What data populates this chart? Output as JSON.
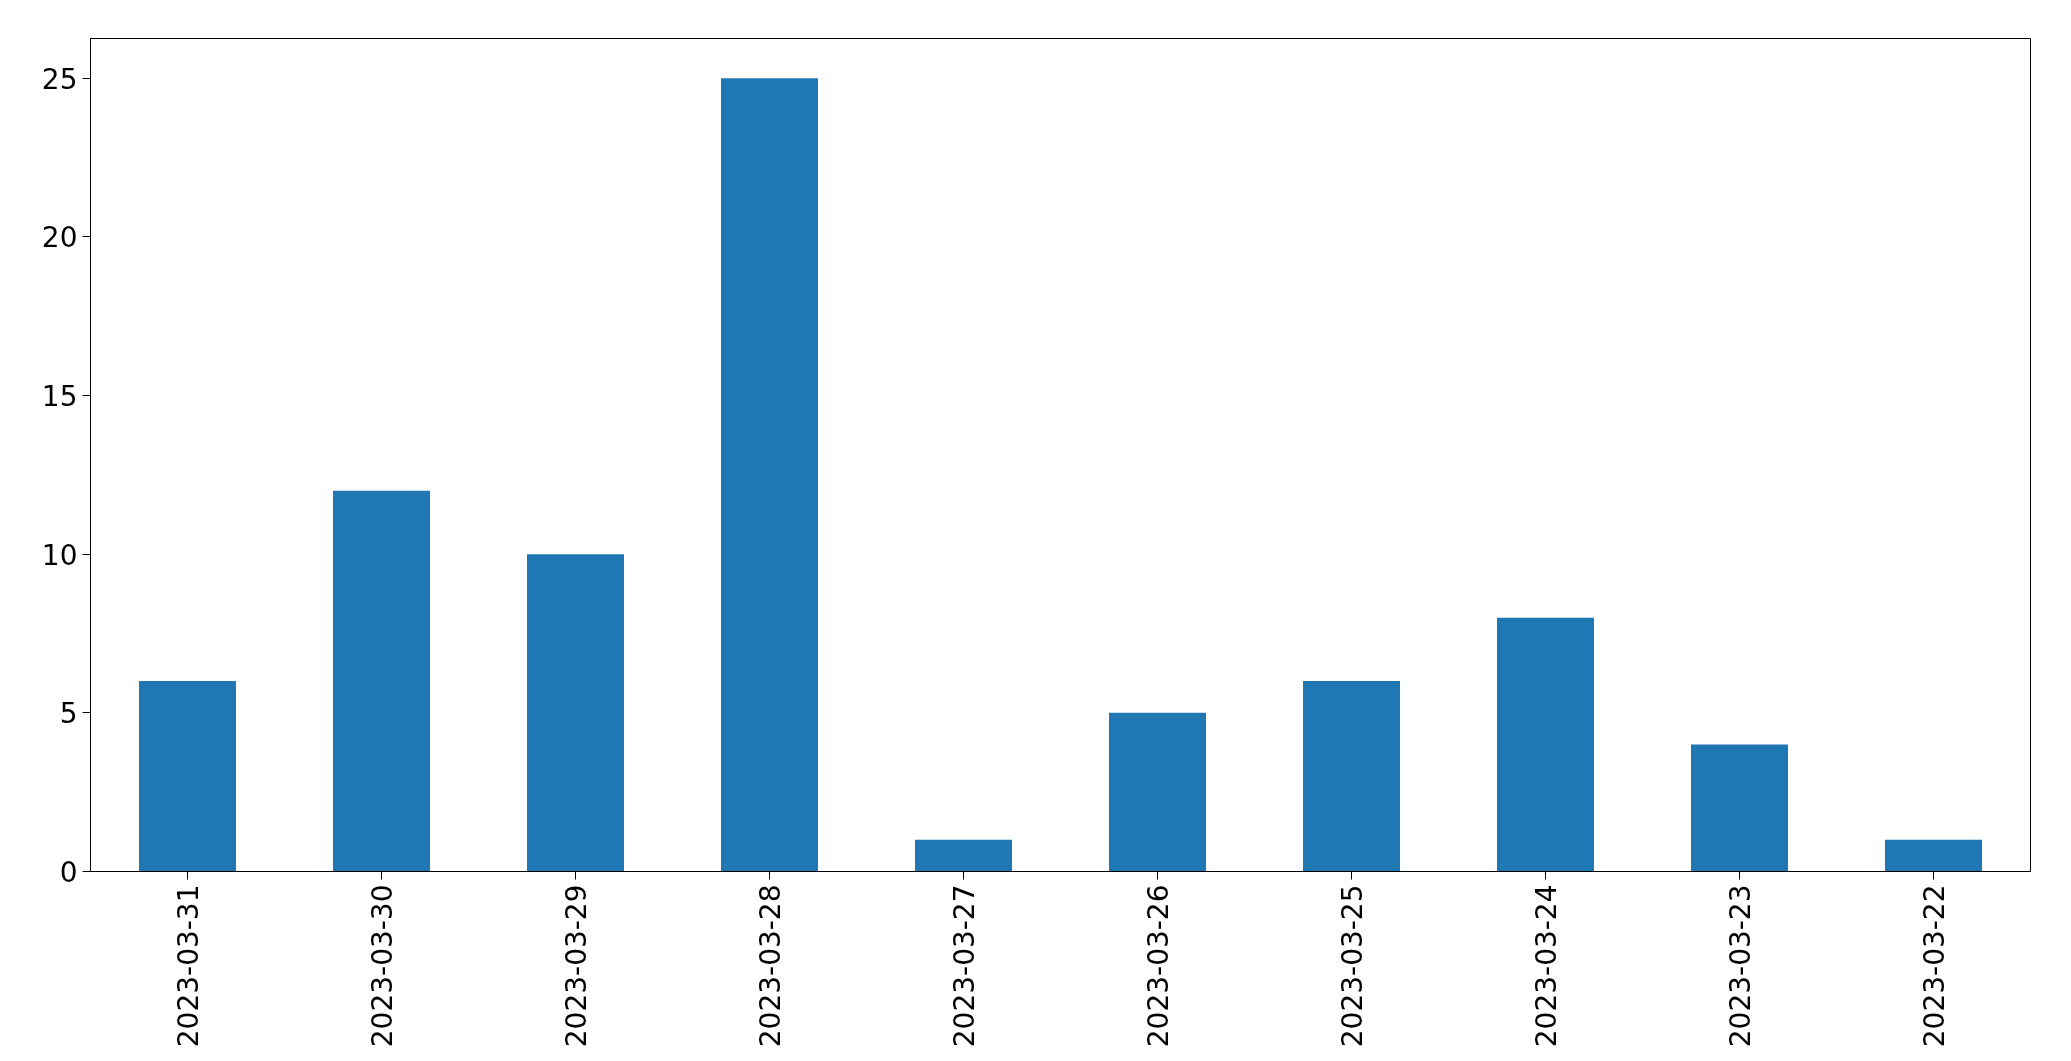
{
  "chart_data": {
    "type": "bar",
    "categories": [
      "2023-03-31",
      "2023-03-30",
      "2023-03-29",
      "2023-03-28",
      "2023-03-27",
      "2023-03-26",
      "2023-03-25",
      "2023-03-24",
      "2023-03-23",
      "2023-03-22"
    ],
    "values": [
      6,
      12,
      10,
      25,
      1,
      5,
      6,
      8,
      4,
      1
    ],
    "color": "#1f77b4",
    "ylim": [
      0,
      26.25
    ],
    "yticks": [
      0,
      5,
      10,
      15,
      20,
      25
    ],
    "grid": false
  }
}
